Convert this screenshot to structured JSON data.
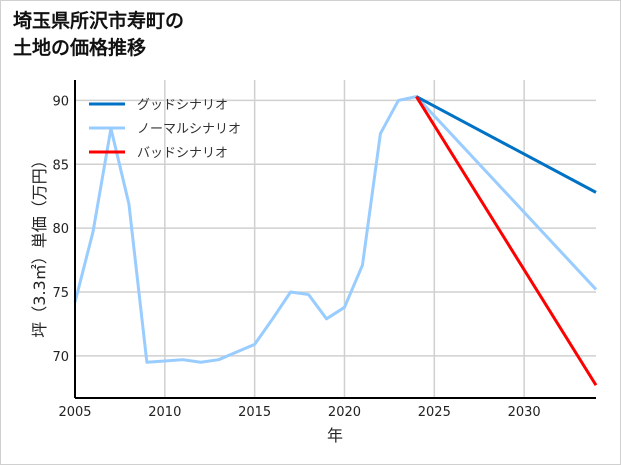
{
  "chart_data": {
    "type": "line",
    "title": "埼玉県所沢市寿町の\n土地の価格推移",
    "xlabel": "年",
    "ylabel": "坪（3.3㎡）単価（万円）",
    "xlim": [
      2005,
      2034
    ],
    "ylim": [
      66.7,
      91.6
    ],
    "xticks": [
      2005,
      2010,
      2015,
      2020,
      2025,
      2030
    ],
    "yticks": [
      70,
      75,
      80,
      85,
      90
    ],
    "grid": true,
    "legend_position": "top-left",
    "series": [
      {
        "name": "グッドシナリオ",
        "color": "#0072c6",
        "x": [
          2024,
          2034
        ],
        "y": [
          90.3,
          82.8
        ]
      },
      {
        "name": "ノーマルシナリオ",
        "color": "#99ccff",
        "x": [
          2005,
          2006,
          2007,
          2008,
          2009,
          2010,
          2011,
          2012,
          2013,
          2014,
          2015,
          2016,
          2017,
          2018,
          2019,
          2020,
          2021,
          2022,
          2023,
          2024,
          2034
        ],
        "y": [
          74.2,
          79.7,
          87.8,
          81.9,
          69.5,
          69.6,
          69.7,
          69.5,
          69.7,
          70.3,
          70.9,
          72.9,
          75.0,
          74.8,
          72.9,
          73.8,
          77.1,
          87.4,
          90.0,
          90.3,
          75.2
        ]
      },
      {
        "name": "バッドシナリオ",
        "color": "#ff0000",
        "x": [
          2024,
          2034
        ],
        "y": [
          90.3,
          67.7
        ]
      }
    ]
  }
}
